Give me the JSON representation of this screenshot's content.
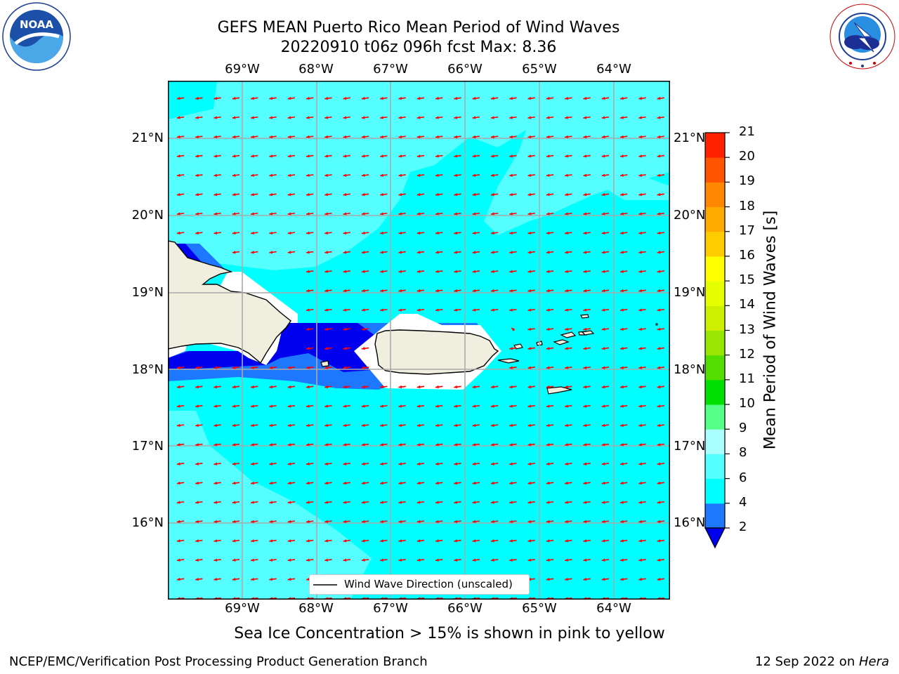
{
  "header": {
    "title_line1": "GEFS MEAN Puerto Rico Mean Period of Wind Waves",
    "title_line2": "20220910 t06z 096h fcst   Max: 8.36"
  },
  "logos": {
    "left": {
      "name": "noaa-logo",
      "text": "NOAA",
      "ring_text": "NATIONAL OCEANIC AND ATMOSPHERIC ADMINISTRATION · U.S. DEPARTMENT OF COMMERCE"
    },
    "right": {
      "name": "nws-logo",
      "ring_text": "NATIONAL WEATHER SERVICE"
    }
  },
  "map": {
    "lon_labels": [
      "69°W",
      "68°W",
      "67°W",
      "66°W",
      "65°W",
      "64°W"
    ],
    "lat_labels": [
      "21°N",
      "20°N",
      "19°N",
      "18°N",
      "17°N",
      "16°N"
    ],
    "legend_label": "Wind Wave Direction (unscaled)",
    "arrow_color": "#ff0000",
    "colors": {
      "ocean_4_6": "#00ffff",
      "ocean_6_8": "#55ffff",
      "band_2_4": "#1e78ff",
      "band_below_2": "#0000ee",
      "land": "#efeedf",
      "grid": "#aaaaaa"
    }
  },
  "colorbar": {
    "label": "Mean Period of Wind Waves [s]",
    "ticks": [
      "2",
      "4",
      "6",
      "8",
      "9",
      "10",
      "11",
      "12",
      "13",
      "14",
      "15",
      "16",
      "17",
      "18",
      "19",
      "20",
      "21"
    ],
    "colors": [
      "#1e78ff",
      "#00ffff",
      "#55ffff",
      "#aaffff",
      "#55ff88",
      "#00e000",
      "#55dd00",
      "#99e600",
      "#ccf000",
      "#e6ff00",
      "#ffff00",
      "#ffcc00",
      "#ffaa00",
      "#ff8800",
      "#ff5500",
      "#ff2200",
      "#ff0000"
    ],
    "under_color": "#0000ee"
  },
  "notes": {
    "sea_ice": "Sea Ice Concentration > 15% is shown in pink to yellow"
  },
  "footer": {
    "left": "NCEP/EMC/Verification Post Processing Product Generation Branch",
    "date": "12 Sep 2022 on ",
    "machine": "Hera"
  }
}
